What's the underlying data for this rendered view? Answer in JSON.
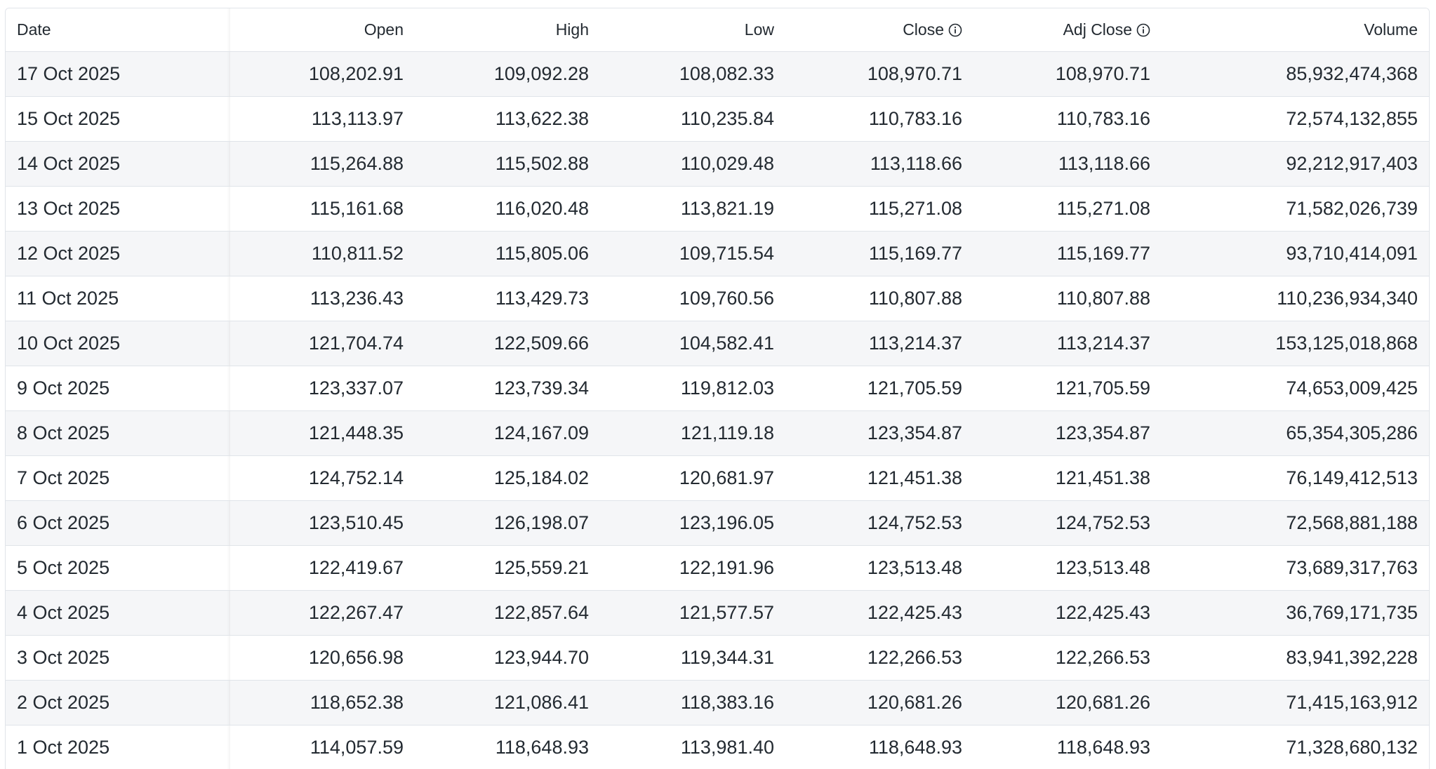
{
  "table": {
    "headers": {
      "date": "Date",
      "open": "Open",
      "high": "High",
      "low": "Low",
      "close": "Close",
      "adj_close": "Adj Close",
      "volume": "Volume"
    },
    "rows": [
      {
        "date": "17 Oct 2025",
        "open": "108,202.91",
        "high": "109,092.28",
        "low": "108,082.33",
        "close": "108,970.71",
        "adj_close": "108,970.71",
        "volume": "85,932,474,368"
      },
      {
        "date": "15 Oct 2025",
        "open": "113,113.97",
        "high": "113,622.38",
        "low": "110,235.84",
        "close": "110,783.16",
        "adj_close": "110,783.16",
        "volume": "72,574,132,855"
      },
      {
        "date": "14 Oct 2025",
        "open": "115,264.88",
        "high": "115,502.88",
        "low": "110,029.48",
        "close": "113,118.66",
        "adj_close": "113,118.66",
        "volume": "92,212,917,403"
      },
      {
        "date": "13 Oct 2025",
        "open": "115,161.68",
        "high": "116,020.48",
        "low": "113,821.19",
        "close": "115,271.08",
        "adj_close": "115,271.08",
        "volume": "71,582,026,739"
      },
      {
        "date": "12 Oct 2025",
        "open": "110,811.52",
        "high": "115,805.06",
        "low": "109,715.54",
        "close": "115,169.77",
        "adj_close": "115,169.77",
        "volume": "93,710,414,091"
      },
      {
        "date": "11 Oct 2025",
        "open": "113,236.43",
        "high": "113,429.73",
        "low": "109,760.56",
        "close": "110,807.88",
        "adj_close": "110,807.88",
        "volume": "110,236,934,340"
      },
      {
        "date": "10 Oct 2025",
        "open": "121,704.74",
        "high": "122,509.66",
        "low": "104,582.41",
        "close": "113,214.37",
        "adj_close": "113,214.37",
        "volume": "153,125,018,868"
      },
      {
        "date": "9 Oct 2025",
        "open": "123,337.07",
        "high": "123,739.34",
        "low": "119,812.03",
        "close": "121,705.59",
        "adj_close": "121,705.59",
        "volume": "74,653,009,425"
      },
      {
        "date": "8 Oct 2025",
        "open": "121,448.35",
        "high": "124,167.09",
        "low": "121,119.18",
        "close": "123,354.87",
        "adj_close": "123,354.87",
        "volume": "65,354,305,286"
      },
      {
        "date": "7 Oct 2025",
        "open": "124,752.14",
        "high": "125,184.02",
        "low": "120,681.97",
        "close": "121,451.38",
        "adj_close": "121,451.38",
        "volume": "76,149,412,513"
      },
      {
        "date": "6 Oct 2025",
        "open": "123,510.45",
        "high": "126,198.07",
        "low": "123,196.05",
        "close": "124,752.53",
        "adj_close": "124,752.53",
        "volume": "72,568,881,188"
      },
      {
        "date": "5 Oct 2025",
        "open": "122,419.67",
        "high": "125,559.21",
        "low": "122,191.96",
        "close": "123,513.48",
        "adj_close": "123,513.48",
        "volume": "73,689,317,763"
      },
      {
        "date": "4 Oct 2025",
        "open": "122,267.47",
        "high": "122,857.64",
        "low": "121,577.57",
        "close": "122,425.43",
        "adj_close": "122,425.43",
        "volume": "36,769,171,735"
      },
      {
        "date": "3 Oct 2025",
        "open": "120,656.98",
        "high": "123,944.70",
        "low": "119,344.31",
        "close": "122,266.53",
        "adj_close": "122,266.53",
        "volume": "83,941,392,228"
      },
      {
        "date": "2 Oct 2025",
        "open": "118,652.38",
        "high": "121,086.41",
        "low": "118,383.16",
        "close": "120,681.26",
        "adj_close": "120,681.26",
        "volume": "71,415,163,912"
      },
      {
        "date": "1 Oct 2025",
        "open": "114,057.59",
        "high": "118,648.93",
        "low": "113,981.40",
        "close": "118,648.93",
        "adj_close": "118,648.93",
        "volume": "71,328,680,132"
      }
    ]
  },
  "icons": {
    "close_info": "info-icon",
    "adj_close_info": "info-icon"
  },
  "colors": {
    "text": "#232a31",
    "row_alt": "#f5f6f8",
    "border": "#e0e4e9"
  }
}
